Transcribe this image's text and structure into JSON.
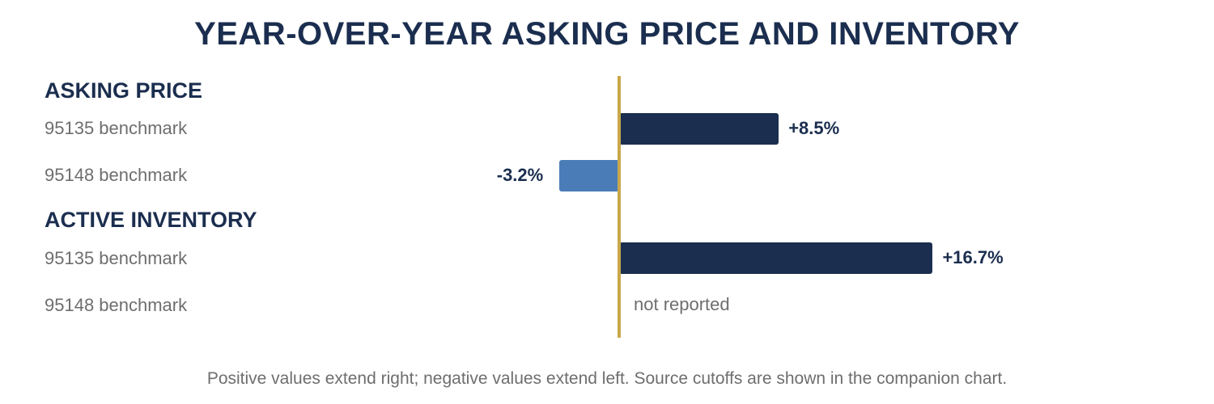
{
  "chart_data": {
    "type": "bar",
    "orientation": "horizontal",
    "title": "YEAR-OVER-YEAR ASKING PRICE AND INVENTORY",
    "unit": "%",
    "xlim": [
      -10,
      20
    ],
    "groups": [
      {
        "name": "ASKING PRICE",
        "rows": [
          {
            "label": "95135 benchmark",
            "value": 8.5,
            "display": "+8.5%",
            "color": "#1b2e4f"
          },
          {
            "label": "95148 benchmark",
            "value": -3.2,
            "display": "-3.2%",
            "color": "#4a7db8"
          }
        ]
      },
      {
        "name": "ACTIVE INVENTORY",
        "rows": [
          {
            "label": "95135 benchmark",
            "value": 16.7,
            "display": "+16.7%",
            "color": "#1b2e4f"
          },
          {
            "label": "95148 benchmark",
            "value": null,
            "display": "not reported",
            "color": "#6e6e6e"
          }
        ]
      }
    ],
    "zero_line_color": "#c9a84c",
    "footnote": "Positive values extend right; negative values extend left. Source cutoffs are shown in the companion chart."
  }
}
